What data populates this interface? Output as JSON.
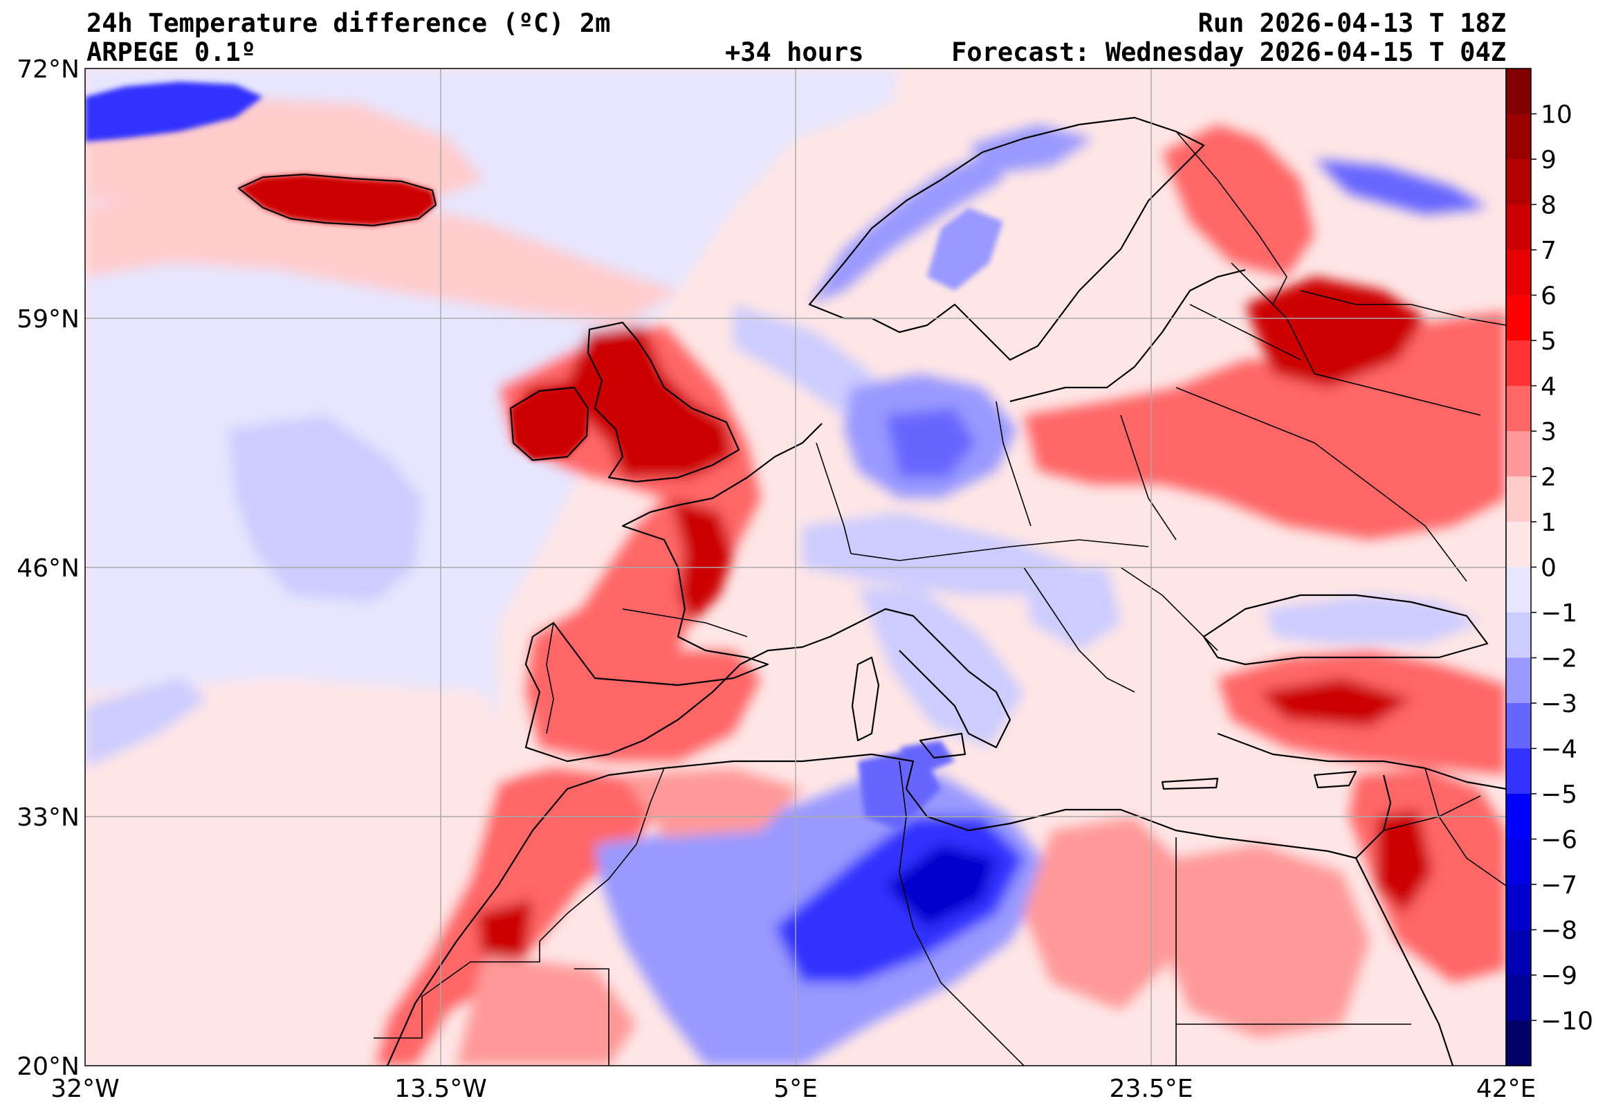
{
  "header": {
    "title": "24h Temperature difference (ºC) 2m",
    "model": "ARPEGE 0.1º",
    "lead_time": "+34 hours",
    "run": "Run 2026-04-13 T 18Z",
    "forecast": "Forecast: Wednesday 2026-04-15 T 04Z"
  },
  "axes": {
    "lat_labels": [
      "72°N",
      "59°N",
      "46°N",
      "33°N",
      "20°N"
    ],
    "lon_labels": [
      "32°W",
      "13.5°W",
      "5°E",
      "23.5°E",
      "42°E"
    ],
    "lat_values": [
      72,
      59,
      46,
      33,
      20
    ],
    "lon_values": [
      -32,
      -13.5,
      5,
      23.5,
      42
    ]
  },
  "colorbar": {
    "labels": [
      "10",
      "9",
      "8",
      "7",
      "6",
      "5",
      "4",
      "3",
      "2",
      "1",
      "0",
      "−1",
      "−2",
      "−3",
      "−4",
      "−5",
      "−6",
      "−7",
      "−8",
      "−9",
      "−10"
    ],
    "colors_top_to_bottom": [
      "#800000",
      "#990000",
      "#b30000",
      "#cc0000",
      "#e60000",
      "#ff0000",
      "#ff3333",
      "#ff6666",
      "#ff9999",
      "#ffcccc",
      "#ffe6e6",
      "#e6e6ff",
      "#ccccff",
      "#9999ff",
      "#6666ff",
      "#3333ff",
      "#0000ff",
      "#0000e6",
      "#0000cc",
      "#0000b3",
      "#000099",
      "#000066"
    ]
  },
  "colors": {
    "warm_strong": "#cc0000",
    "warm_mid": "#ff6666",
    "warm_light": "#ffe6e6",
    "cold_light": "#e6e6ff",
    "cold_mid": "#9999ff",
    "cold_strong": "#0000cc"
  }
}
